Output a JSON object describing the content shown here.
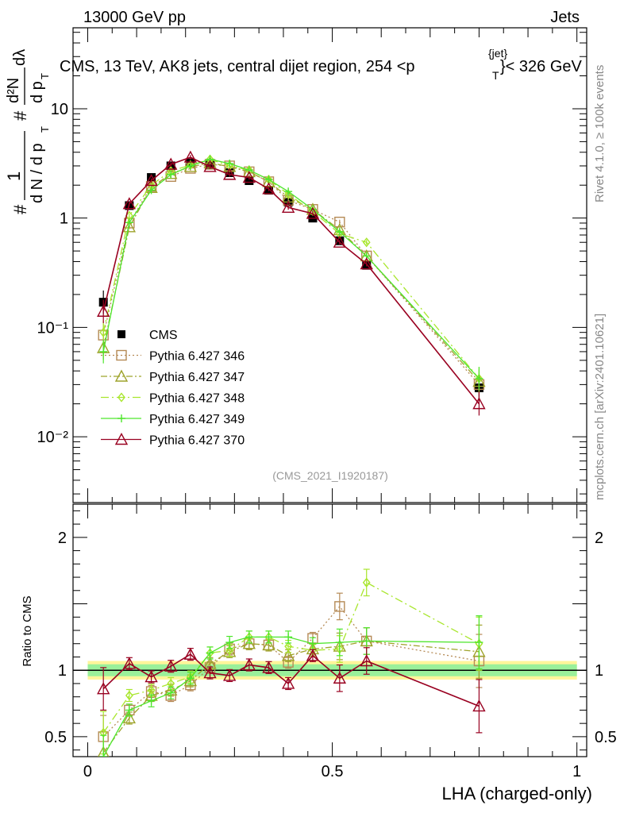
{
  "header": {
    "left": "13000 GeV pp",
    "right": "Jets",
    "plot_title": "CMS, 13 TeV, AK8 jets, central dijet region, 254 <p",
    "plot_title_sup": "{jet}",
    "plot_title_sub": "T",
    "plot_title_end": "}< 326 GeV"
  },
  "side_text": {
    "rivet": "Rivet 4.1.0, ≥ 100k events",
    "mcplots": "mcplots.cern.ch [arXiv:2401.10621]"
  },
  "analysis_id": "(CMS_2021_I1920187)",
  "ylabel_main": {
    "hash": "#",
    "frac_num": "1",
    "frac_den": "d N / d p",
    "frac_den_sub": "T",
    "num": "d²N",
    "den": "d p",
    "den_sub": "T",
    "dl": "dλ"
  },
  "ylabel_ratio": "Ratio to CMS",
  "xlabel": "LHA (charged-only)",
  "colors": {
    "cms": "#000000",
    "p346": "#b58a55",
    "p347": "#9ea32b",
    "p348": "#a8e62c",
    "p349": "#4ee62c",
    "p370": "#990020",
    "band_outer": "#fff59a",
    "band_inner": "#9af09a"
  },
  "chart_data": {
    "type": "line",
    "x": [
      0.032,
      0.085,
      0.13,
      0.17,
      0.21,
      0.25,
      0.29,
      0.33,
      0.37,
      0.41,
      0.46,
      0.515,
      0.57,
      0.8
    ],
    "xlim": [
      -0.03,
      1.02
    ],
    "xticks": [
      0,
      0.5,
      1
    ],
    "xtick_labels": [
      "0",
      "0.5",
      "1"
    ],
    "main": {
      "yscale": "log",
      "ylim": [
        0.0025,
        55
      ],
      "ytick_labels": [
        "10⁻²",
        "10⁻¹",
        "1",
        "10"
      ],
      "ytick_values": [
        0.01,
        0.1,
        1,
        10
      ]
    },
    "ratio": {
      "ylim": [
        0.35,
        2.25
      ],
      "ytick_values": [
        0.5,
        1,
        2
      ],
      "ytick_labels": [
        "0.5",
        "1",
        "2"
      ]
    },
    "series": [
      {
        "name": "CMS",
        "key": "cms",
        "style": "data",
        "values": [
          0.17,
          1.3,
          2.35,
          3.0,
          3.2,
          3.05,
          2.6,
          2.2,
          1.8,
          1.4,
          1.0,
          0.62,
          0.37,
          0.028
        ]
      },
      {
        "name": "Pythia 6.427 346",
        "key": "p346",
        "style": "dotted",
        "marker": "square",
        "values": [
          0.085,
          0.9,
          1.95,
          2.4,
          2.85,
          3.1,
          3.0,
          2.65,
          2.15,
          1.45,
          1.2,
          0.92,
          0.45,
          0.03
        ],
        "ratio": [
          0.5,
          0.7,
          0.84,
          0.81,
          0.89,
          1.02,
          1.16,
          1.2,
          1.19,
          1.06,
          1.24,
          1.48,
          1.22,
          1.07
        ]
      },
      {
        "name": "Pythia 6.427 347",
        "key": "p347",
        "style": "dashdot",
        "marker": "triangle",
        "values": [
          0.065,
          0.83,
          1.9,
          2.55,
          2.95,
          3.2,
          2.95,
          2.65,
          2.15,
          1.55,
          1.2,
          0.78,
          0.45,
          0.032
        ],
        "ratio": [
          0.38,
          0.64,
          0.81,
          0.85,
          0.92,
          1.05,
          1.14,
          1.2,
          1.19,
          1.11,
          1.16,
          1.18,
          1.22,
          1.14
        ]
      },
      {
        "name": "Pythia 6.427 348",
        "key": "p348",
        "style": "dashdot2",
        "marker": "diamond",
        "values": [
          0.09,
          1.05,
          2.0,
          2.7,
          3.05,
          3.45,
          3.0,
          2.75,
          2.25,
          1.65,
          1.15,
          0.72,
          0.6,
          0.034
        ],
        "ratio": [
          0.53,
          0.81,
          0.85,
          0.9,
          0.95,
          1.13,
          1.15,
          1.25,
          1.25,
          1.18,
          1.15,
          1.16,
          1.66,
          1.2
        ]
      },
      {
        "name": "Pythia 6.427 349",
        "key": "p349",
        "style": "solid",
        "marker": "cross",
        "values": [
          0.06,
          0.91,
          1.8,
          2.5,
          3.0,
          3.45,
          3.15,
          2.75,
          2.25,
          1.75,
          1.2,
          0.75,
          0.45,
          0.034
        ],
        "ratio": [
          0.35,
          0.7,
          0.77,
          0.83,
          0.94,
          1.13,
          1.21,
          1.25,
          1.25,
          1.25,
          1.2,
          1.21,
          1.22,
          1.21
        ]
      },
      {
        "name": "Pythia 6.427 370",
        "key": "p370",
        "style": "solid",
        "marker": "triangle",
        "values": [
          0.14,
          1.35,
          2.2,
          3.1,
          3.6,
          2.95,
          2.5,
          2.35,
          1.85,
          1.25,
          1.1,
          0.6,
          0.38,
          0.02
        ],
        "ratio": [
          0.86,
          1.05,
          0.95,
          1.03,
          1.12,
          0.98,
          0.96,
          1.04,
          1.02,
          0.9,
          1.11,
          0.94,
          1.07,
          0.73
        ]
      }
    ]
  }
}
